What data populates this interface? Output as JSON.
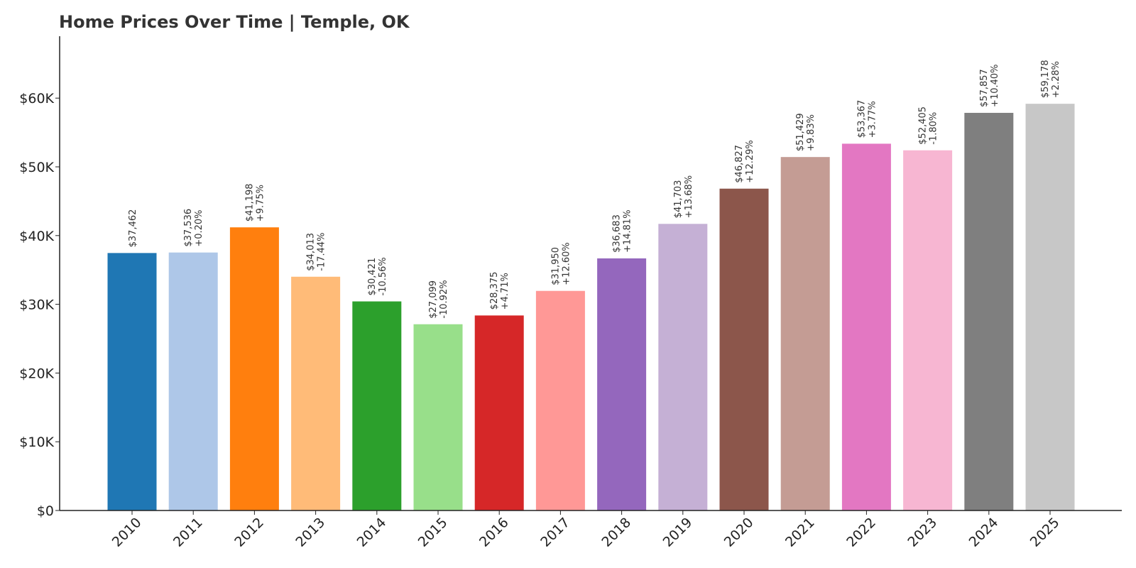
{
  "chart_data": {
    "type": "bar",
    "title": "Home Prices Over Time | Temple, OK",
    "xlabel": "",
    "ylabel": "",
    "ylim": [
      0,
      69000
    ],
    "grid": false,
    "legend": "none",
    "yticks": [
      {
        "value": 0,
        "label": "$0"
      },
      {
        "value": 10000,
        "label": "$10K"
      },
      {
        "value": 20000,
        "label": "$20K"
      },
      {
        "value": 30000,
        "label": "$30K"
      },
      {
        "value": 40000,
        "label": "$40K"
      },
      {
        "value": 50000,
        "label": "$50K"
      },
      {
        "value": 60000,
        "label": "$60K"
      }
    ],
    "categories": [
      "2010",
      "2011",
      "2012",
      "2013",
      "2014",
      "2015",
      "2016",
      "2017",
      "2018",
      "2019",
      "2020",
      "2021",
      "2022",
      "2023",
      "2024",
      "2025"
    ],
    "values": [
      37462,
      37536,
      41198,
      34013,
      30421,
      27099,
      28375,
      31950,
      36683,
      41703,
      46827,
      51429,
      53367,
      52405,
      57857,
      59178
    ],
    "value_labels": [
      "$37,462",
      "$37,536",
      "$41,198",
      "$34,013",
      "$30,421",
      "$27,099",
      "$28,375",
      "$31,950",
      "$36,683",
      "$41,703",
      "$46,827",
      "$51,429",
      "$53,367",
      "$52,405",
      "$57,857",
      "$59,178"
    ],
    "change_labels": [
      "",
      "+0.20%",
      "+9.75%",
      "-17.44%",
      "-10.56%",
      "-10.92%",
      "+4.71%",
      "+12.60%",
      "+14.81%",
      "+13.68%",
      "+12.29%",
      "+9.83%",
      "+3.77%",
      "-1.80%",
      "+10.40%",
      "+2.28%"
    ],
    "colors": [
      "#1f77b4",
      "#aec7e8",
      "#ff7f0e",
      "#ffbb78",
      "#2ca02c",
      "#98df8a",
      "#d62728",
      "#ff9896",
      "#9467bd",
      "#c5b0d5",
      "#8c564b",
      "#c49c94",
      "#e377c2",
      "#f7b6d2",
      "#7f7f7f",
      "#c7c7c7"
    ]
  }
}
